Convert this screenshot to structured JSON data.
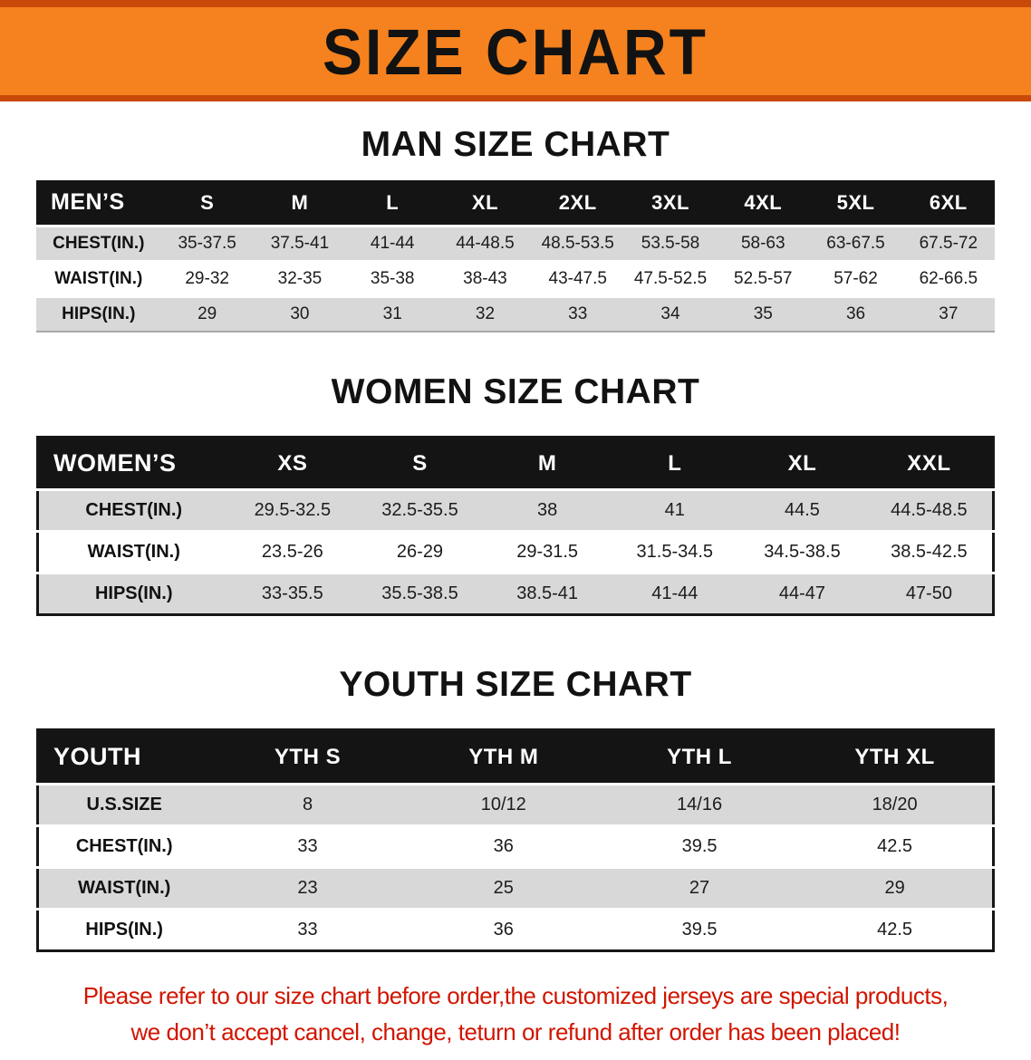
{
  "banner": {
    "title": "SIZE CHART"
  },
  "headings": {
    "men": "MAN SIZE CHART",
    "women": "WOMEN SIZE CHART",
    "youth": "YOUTH SIZE CHART"
  },
  "tables": {
    "men": {
      "header": [
        "MEN’S",
        "S",
        "M",
        "L",
        "XL",
        "2XL",
        "3XL",
        "4XL",
        "5XL",
        "6XL"
      ],
      "rows": [
        [
          "CHEST(IN.)",
          "35-37.5",
          "37.5-41",
          "41-44",
          "44-48.5",
          "48.5-53.5",
          "53.5-58",
          "58-63",
          "63-67.5",
          "67.5-72"
        ],
        [
          "WAIST(IN.)",
          "29-32",
          "32-35",
          "35-38",
          "38-43",
          "43-47.5",
          "47.5-52.5",
          "52.5-57",
          "57-62",
          "62-66.5"
        ],
        [
          "HIPS(IN.)",
          "29",
          "30",
          "31",
          "32",
          "33",
          "34",
          "35",
          "36",
          "37"
        ]
      ]
    },
    "women": {
      "header": [
        "WOMEN’S",
        "XS",
        "S",
        "M",
        "L",
        "XL",
        "XXL"
      ],
      "rows": [
        [
          "CHEST(IN.)",
          "29.5-32.5",
          "32.5-35.5",
          "38",
          "41",
          "44.5",
          "44.5-48.5"
        ],
        [
          "WAIST(IN.)",
          "23.5-26",
          "26-29",
          "29-31.5",
          "31.5-34.5",
          "34.5-38.5",
          "38.5-42.5"
        ],
        [
          "HIPS(IN.)",
          "33-35.5",
          "35.5-38.5",
          "38.5-41",
          "41-44",
          "44-47",
          "47-50"
        ]
      ]
    },
    "youth": {
      "header": [
        "YOUTH",
        "YTH S",
        "YTH M",
        "YTH L",
        "YTH XL"
      ],
      "rows": [
        [
          "U.S.SIZE",
          "8",
          "10/12",
          "14/16",
          "18/20"
        ],
        [
          "CHEST(IN.)",
          "33",
          "36",
          "39.5",
          "42.5"
        ],
        [
          "WAIST(IN.)",
          "23",
          "25",
          "27",
          "29"
        ],
        [
          "HIPS(IN.)",
          "33",
          "36",
          "39.5",
          "42.5"
        ]
      ]
    }
  },
  "disclaimer": {
    "line1": "Please refer to our size chart before order,the customized jerseys are special products,",
    "line2": "we don’t accept cancel, change, teturn or refund after order has been placed!"
  },
  "colors": {
    "banner_orange": "#F5821E",
    "banner_edge": "#C94A08",
    "header_black": "#141414",
    "row_gray": "#D8D8D8",
    "disclaimer_red": "#D11500"
  }
}
